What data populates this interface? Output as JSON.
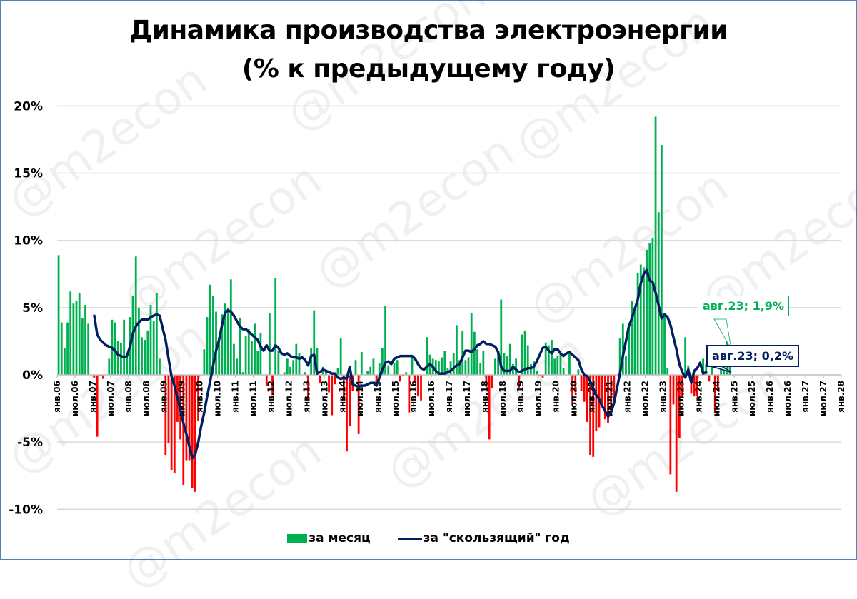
{
  "title": {
    "line1": "Динамика производства электроэнергии",
    "line2": "(% к предыдущему году)"
  },
  "watermark": "@m2econ",
  "legend": {
    "bar_label": "за месяц",
    "line_label": "за \"скользящий\" год"
  },
  "callouts": {
    "monthly": "авг.23; 1,9%",
    "rolling": "авг.23; 0,2%"
  },
  "colors": {
    "positive_bar": "#00b050",
    "negative_bar": "#ff0000",
    "rolling_line": "#002060",
    "gridline": "#d9d9d9",
    "frame": "#4f81bd"
  },
  "chart_data": {
    "type": "bar",
    "title": "Динамика производства электроэнергии (% к предыдущему году)",
    "xlabel": "",
    "ylabel": "%",
    "ylim": [
      -10,
      20
    ],
    "yticks": [
      "-10%",
      "-5%",
      "0%",
      "5%",
      "10%",
      "15%",
      "20%"
    ],
    "ytick_values": [
      -10,
      -5,
      0,
      5,
      10,
      15,
      20
    ],
    "grid": true,
    "legend_position": "bottom",
    "xticks": [
      "янв.06",
      "июл.06",
      "янв.07",
      "июл.07",
      "янв.08",
      "июл.08",
      "янв.09",
      "июл.09",
      "янв.10",
      "июл.10",
      "янв.11",
      "июл.11",
      "янв.12",
      "июл.12",
      "янв.13",
      "июл.13",
      "янв.14",
      "июл.14",
      "янв.15",
      "июл.15",
      "янв.16",
      "июл.16",
      "янв.17",
      "июл.17",
      "янв.18",
      "июл.18",
      "янв.19",
      "июл.19",
      "янв.20",
      "июл.20",
      "янв.21",
      "июл.21",
      "янв.22",
      "июл.22",
      "янв.23",
      "июл.23",
      "янв.24",
      "июл.24",
      "янв.25",
      "июл.25",
      "янв.26",
      "июл.26",
      "янв.27",
      "июл.27",
      "янв.28"
    ],
    "x_start": "янв.06",
    "x_end_data": "авг.23",
    "series": [
      {
        "name": "за месяц",
        "type": "bar",
        "values": [
          8.9,
          3.9,
          2.0,
          3.9,
          6.2,
          5.3,
          5.5,
          6.1,
          4.2,
          5.2,
          3.8,
          0,
          -0.2,
          -4.6,
          -0.1,
          -0.3,
          0,
          1.2,
          4.1,
          3.9,
          2.5,
          2.4,
          4.1,
          1.6,
          4.3,
          5.9,
          8.8,
          5.0,
          2.8,
          2.6,
          3.3,
          5.2,
          4.0,
          6.1,
          1.2,
          0,
          -6.0,
          -5.1,
          -7.1,
          -7.3,
          -3.5,
          -4.8,
          -8.2,
          -6.4,
          -6.4,
          -8.4,
          -8.7,
          -3.4,
          0,
          1.9,
          4.3,
          6.7,
          5.9,
          4.7,
          2.7,
          4.5,
          5.3,
          5.0,
          7.1,
          2.3,
          1.2,
          4.2,
          0.2,
          2.9,
          3.4,
          2.5,
          3.8,
          1.8,
          3.1,
          0,
          -0.8,
          4.6,
          -1.5,
          7.2,
          1.8,
          0,
          0.2,
          1.2,
          0.6,
          1.1,
          2.3,
          1.6,
          0,
          0.2,
          -1.8,
          2.0,
          4.8,
          2.0,
          -0.6,
          0.6,
          0.3,
          -1.3,
          -3.0,
          -0.7,
          0.5,
          2.7,
          -1.9,
          -5.7,
          -3.8,
          -1.2,
          1.1,
          -4.4,
          1.7,
          0,
          0.3,
          0.6,
          1.2,
          -0.5,
          0.9,
          2.0,
          5.1,
          0.7,
          0,
          0.9,
          1.1,
          -0.5,
          -0.1,
          0.2,
          -2.8,
          1.4,
          -0.5,
          -1.6,
          -1.9,
          0,
          2.8,
          1.5,
          1.2,
          1.1,
          1.0,
          1.3,
          1.8,
          0.5,
          1.0,
          1.6,
          3.7,
          1.1,
          3.3,
          1.1,
          1.3,
          4.6,
          3.2,
          1.9,
          0.9,
          1.8,
          -0.9,
          -4.8,
          -1.0,
          1.2,
          1.8,
          5.6,
          1.6,
          1.4,
          2.3,
          0.8,
          1.2,
          -1.0,
          3.0,
          3.3,
          2.2,
          0.8,
          1.0,
          0.3,
          -0.1,
          -0.2,
          2.4,
          2.2,
          2.6,
          1.2,
          1.4,
          1.6,
          0.5,
          0,
          1.7,
          -2.2,
          -1.3,
          0.4,
          -1.2,
          -2.0,
          -3.5,
          -6.0,
          -6.1,
          -4.2,
          -3.9,
          -2.1,
          -3.3,
          -3.6,
          -3.0,
          -2.2,
          0,
          2.7,
          3.8,
          1.4,
          3.6,
          5.5,
          4.7,
          7.6,
          8.2,
          8.0,
          9.3,
          9.8,
          10.2,
          19.2,
          12.1,
          17.1,
          4.5,
          0.5,
          -7.4,
          -2.2,
          -8.7,
          -4.7,
          -1.6,
          2.8,
          0.7,
          -1.4,
          -1.6,
          -1.6,
          0,
          1.2,
          0.8,
          -0.5,
          1.6,
          -2.8,
          -1.2,
          0.4,
          2.0,
          2.7,
          1.9
        ],
        "color_positive": "#00b050",
        "color_negative": "#ff0000"
      },
      {
        "name": "за \"скользящий\" год",
        "type": "line",
        "start_index": 12,
        "values": [
          4.4,
          3.0,
          2.6,
          2.4,
          2.2,
          2.1,
          2.0,
          1.8,
          1.5,
          1.4,
          1.3,
          1.4,
          2.1,
          3.1,
          3.6,
          3.9,
          4.1,
          4.1,
          4.1,
          4.3,
          4.4,
          4.5,
          4.4,
          3.5,
          2.6,
          1.2,
          -0.1,
          -0.8,
          -1.7,
          -2.6,
          -3.6,
          -4.4,
          -5.3,
          -6.2,
          -5.9,
          -5.0,
          -3.8,
          -2.8,
          -1.6,
          -0.5,
          0.7,
          1.8,
          2.6,
          3.7,
          4.6,
          4.8,
          4.7,
          4.4,
          4.0,
          3.6,
          3.4,
          3.4,
          3.2,
          3.0,
          2.8,
          2.6,
          2.1,
          1.8,
          2.2,
          1.8,
          1.8,
          2.2,
          2.0,
          1.6,
          1.5,
          1.6,
          1.4,
          1.3,
          1.3,
          1.2,
          1.3,
          1.1,
          0.7,
          1.4,
          1.5,
          0.1,
          0.2,
          0.4,
          0.3,
          0.2,
          0.1,
          0.1,
          -0.2,
          -0.3,
          -0.2,
          -0.3,
          0.6,
          -0.7,
          -0.8,
          -0.9,
          -0.8,
          -0.8,
          -0.7,
          -0.6,
          -0.6,
          -0.8,
          -0.2,
          0.4,
          0.9,
          1.0,
          0.8,
          1.2,
          1.3,
          1.4,
          1.4,
          1.4,
          1.4,
          1.4,
          1.2,
          0.8,
          0.5,
          0.4,
          0.6,
          0.8,
          0.6,
          0.3,
          0.1,
          0.1,
          0.1,
          0.2,
          0.3,
          0.5,
          0.7,
          0.8,
          1.3,
          1.8,
          1.8,
          1.7,
          1.9,
          2.2,
          2.3,
          2.5,
          2.3,
          2.3,
          2.2,
          2.1,
          1.7,
          0.6,
          0.3,
          0.3,
          0.3,
          0.6,
          0.4,
          0.2,
          0.3,
          0.4,
          0.5,
          0.5,
          0.6,
          1.0,
          1.5,
          2.0,
          2.1,
          1.8,
          1.6,
          1.9,
          1.9,
          1.6,
          1.4,
          1.6,
          1.7,
          1.5,
          1.3,
          1.1,
          0.4,
          0.0,
          -0.1,
          -0.5,
          -1.0,
          -1.5,
          -1.8,
          -2.3,
          -2.7,
          -3.1,
          -2.8,
          -2.1,
          -1.0,
          0.1,
          1.4,
          2.5,
          3.6,
          4.2,
          4.9,
          5.6,
          6.8,
          7.5,
          7.8,
          7.0,
          6.9,
          6.1,
          5.2,
          4.2,
          4.5,
          4.3,
          3.7,
          2.8,
          1.9,
          0.8,
          0.2,
          -0.2,
          0.4,
          -0.6,
          0.3,
          0.5,
          0.9,
          0.1,
          0.2
        ]
      }
    ],
    "annotations": [
      {
        "text": "авг.23; 1,9%",
        "series": "за месяц"
      },
      {
        "text": "авг.23; 0,2%",
        "series": "за \"скользящий\" год"
      }
    ]
  }
}
